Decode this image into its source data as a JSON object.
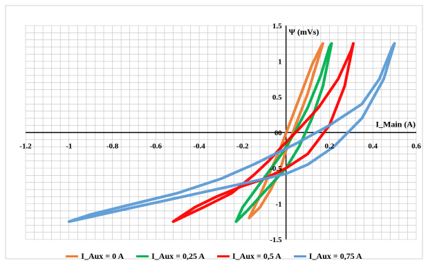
{
  "chart_data": {
    "type": "line",
    "title": "",
    "xlabel": "I_Main (A)",
    "ylabel": "Ψ (mVs)",
    "xlim": [
      -1.2,
      0.6
    ],
    "ylim": [
      -1.5,
      1.5
    ],
    "grid": true,
    "legend_position": "bottom",
    "x_ticks": [
      "-1.2",
      "-1",
      "-0.8",
      "-0.6",
      "-0.4",
      "-0.2",
      "0",
      "0.2",
      "0.4",
      "0.6"
    ],
    "y_ticks": [
      "-1.5",
      "-1",
      "-0.5",
      "0",
      "0.5",
      "1",
      "1.5"
    ],
    "series": [
      {
        "name": "I_Aux = 0 A",
        "color": "#ED7D31",
        "x": [
          -0.17,
          -0.12,
          -0.07,
          -0.03,
          0.0,
          0.05,
          0.1,
          0.14,
          0.17,
          0.16,
          0.12,
          0.07,
          0.02,
          -0.03,
          -0.08,
          -0.13,
          -0.17
        ],
        "y": [
          -1.2,
          -1.05,
          -0.8,
          -0.55,
          -0.25,
          0.15,
          0.55,
          0.95,
          1.25,
          1.2,
          0.95,
          0.55,
          0.15,
          -0.25,
          -0.6,
          -0.95,
          -1.2
        ]
      },
      {
        "name": "I_Aux = 0,25 A",
        "color": "#00B050",
        "x": [
          -0.23,
          -0.18,
          -0.12,
          -0.06,
          0.0,
          0.06,
          0.12,
          0.17,
          0.21,
          0.2,
          0.16,
          0.1,
          0.04,
          -0.02,
          -0.08,
          -0.14,
          -0.2,
          -0.23
        ],
        "y": [
          -1.25,
          -1.1,
          -0.9,
          -0.7,
          -0.5,
          -0.2,
          0.2,
          0.65,
          1.25,
          1.2,
          0.8,
          0.35,
          0.0,
          -0.3,
          -0.55,
          -0.8,
          -1.05,
          -1.25
        ]
      },
      {
        "name": "I_Aux = 0,5 A",
        "color": "#FF0000",
        "x": [
          -0.52,
          -0.42,
          -0.32,
          -0.2,
          -0.1,
          0.0,
          0.1,
          0.2,
          0.27,
          0.31,
          0.3,
          0.24,
          0.15,
          0.06,
          -0.02,
          -0.08,
          -0.15,
          -0.25,
          -0.38,
          -0.52
        ],
        "y": [
          -1.25,
          -1.05,
          -0.9,
          -0.75,
          -0.65,
          -0.5,
          -0.3,
          0.1,
          0.65,
          1.25,
          1.15,
          0.75,
          0.35,
          0.05,
          -0.2,
          -0.4,
          -0.6,
          -0.85,
          -1.05,
          -1.25
        ]
      },
      {
        "name": "I_Aux = 0,75 A",
        "color": "#5B9BD5",
        "x": [
          -1.0,
          -0.85,
          -0.7,
          -0.55,
          -0.4,
          -0.25,
          -0.1,
          0.0,
          0.1,
          0.22,
          0.35,
          0.45,
          0.5,
          0.49,
          0.43,
          0.35,
          0.2,
          0.05,
          -0.05,
          -0.15,
          -0.3,
          -0.5,
          -0.7,
          -0.9,
          -1.0
        ],
        "y": [
          -1.25,
          -1.15,
          -1.05,
          -0.95,
          -0.85,
          -0.75,
          -0.65,
          -0.58,
          -0.45,
          -0.2,
          0.2,
          0.75,
          1.25,
          1.2,
          0.75,
          0.4,
          0.1,
          -0.15,
          -0.3,
          -0.45,
          -0.65,
          -0.85,
          -1.0,
          -1.15,
          -1.25
        ]
      }
    ]
  }
}
